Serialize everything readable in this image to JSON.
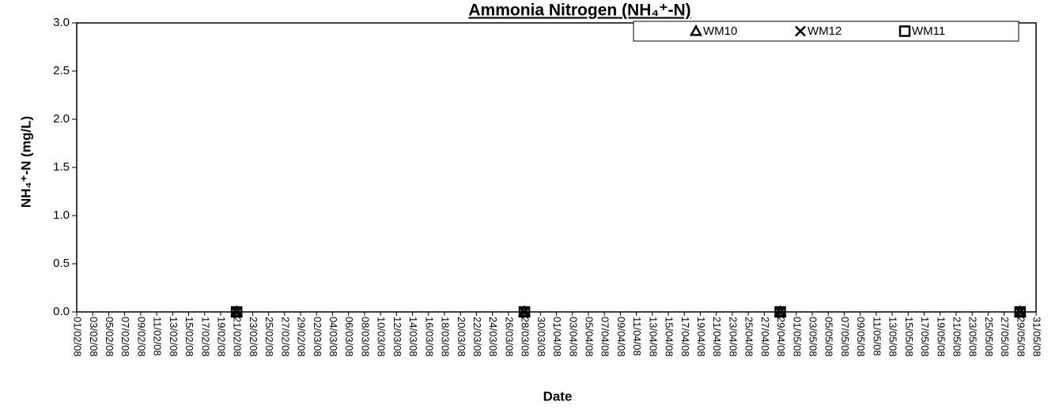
{
  "chart_data": {
    "type": "scatter",
    "title": "Ammonia Nitrogen (NH₄⁺-N)",
    "x_label": "Date",
    "y_label": "NH₄⁺-N (mg/L)",
    "x": [
      "21/02/08",
      "28/03/08",
      "29/04/08",
      "29/05/08"
    ],
    "series": [
      {
        "name": "WM10",
        "marker": "triangle",
        "color": "#000000",
        "values": [
          0,
          0,
          0,
          0
        ]
      },
      {
        "name": "WM12",
        "marker": "x",
        "color": "#000000",
        "values": [
          0,
          0,
          0,
          0
        ]
      },
      {
        "name": "WM11",
        "marker": "square",
        "color": "#000000",
        "values": [
          0,
          0,
          0,
          0
        ]
      }
    ],
    "xlim": [
      "01/02/08",
      "31/05/08"
    ],
    "xticks": [
      "01/02/08",
      "03/02/08",
      "05/02/08",
      "07/02/08",
      "09/02/08",
      "11/02/08",
      "13/02/08",
      "15/02/08",
      "17/02/08",
      "19/02/08",
      "21/02/08",
      "23/02/08",
      "25/02/08",
      "27/02/08",
      "29/02/08",
      "02/03/08",
      "04/03/08",
      "06/03/08",
      "08/03/08",
      "10/03/08",
      "12/03/08",
      "14/03/08",
      "16/03/08",
      "18/03/08",
      "20/03/08",
      "22/03/08",
      "24/03/08",
      "26/03/08",
      "28/03/08",
      "30/03/08",
      "01/04/08",
      "03/04/08",
      "05/04/08",
      "07/04/08",
      "09/04/08",
      "11/04/08",
      "13/04/08",
      "15/04/08",
      "17/04/08",
      "19/04/08",
      "21/04/08",
      "23/04/08",
      "25/04/08",
      "27/04/08",
      "29/04/08",
      "01/05/08",
      "03/05/08",
      "05/05/08",
      "07/05/08",
      "09/05/08",
      "11/05/08",
      "13/05/08",
      "15/05/08",
      "17/05/08",
      "19/05/08",
      "21/05/08",
      "23/05/08",
      "25/05/08",
      "27/05/08",
      "29/05/08",
      "31/05/08"
    ],
    "ylim": [
      0,
      3
    ],
    "yticks": [
      {
        "value": 0,
        "label": "0.0"
      },
      0.5,
      {
        "value": 1,
        "label": "1.0"
      },
      1.5,
      {
        "value": 2,
        "label": "2.0"
      },
      2.5,
      {
        "value": 3,
        "label": "3.0"
      }
    ],
    "grid": false,
    "legend": "top-right"
  }
}
